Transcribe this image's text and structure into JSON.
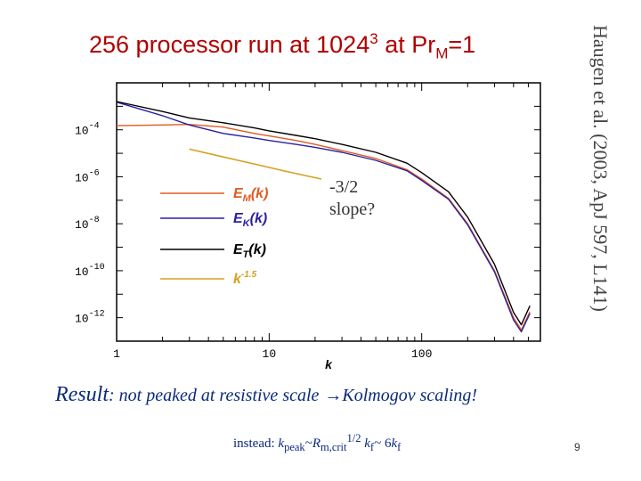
{
  "slide": {
    "title_main": "256 processor run at 1024",
    "title_sup": "3",
    "title_mid": " at Pr",
    "title_sub": "M",
    "title_end": "=1",
    "side_citation": "Haugen et al. (2003, ApJ 597, L141)",
    "result_label": "Result",
    "result_text": ": not peaked at resistive scale",
    "result_arrow": "→",
    "result_tail": "Kolmogov scaling!",
    "instead_label": "instead: ",
    "instead_k": "k",
    "instead_peak_sub": "peak",
    "instead_tilde": "~",
    "instead_R": "R",
    "instead_R_sub": "m,crit",
    "instead_R_sup": "1/2",
    "instead_space": " ",
    "instead_kf": "k",
    "instead_f_sub": "f",
    "instead_tail": "~ 6",
    "instead_kf2": "k",
    "instead_f2_sub": "f",
    "page_number": "9",
    "slope_note_line1": "-3/2",
    "slope_note_line2": "slope?"
  },
  "chart_data": {
    "type": "line",
    "xlabel": "k",
    "x_scale": "log",
    "y_scale": "log",
    "xlim": [
      1,
      600
    ],
    "ylim": [
      1e-13,
      0.01
    ],
    "x_ticks": [
      {
        "value": 1,
        "label": "1"
      },
      {
        "value": 10,
        "label": "10"
      },
      {
        "value": 100,
        "label": "100"
      }
    ],
    "y_ticks": [
      {
        "value": 0.0001,
        "base": "10",
        "exp": "-4"
      },
      {
        "value": 1e-06,
        "base": "10",
        "exp": "-6"
      },
      {
        "value": 1e-08,
        "base": "10",
        "exp": "-8"
      },
      {
        "value": 1e-10,
        "base": "10",
        "exp": "-10"
      },
      {
        "value": 1e-12,
        "base": "10",
        "exp": "-12"
      }
    ],
    "legend_position": "left-center",
    "series": [
      {
        "name": "E_M(k)",
        "legend_base": "E",
        "legend_sub": "M",
        "legend_arg": "(k)",
        "color": "#e05a20",
        "x": [
          1,
          2,
          3,
          5,
          8,
          10,
          15,
          20,
          30,
          50,
          80,
          100,
          150,
          200,
          300,
          400,
          450,
          512
        ],
        "y": [
          0.00015,
          0.00016,
          0.00017,
          0.00013,
          7e-05,
          5.5e-05,
          3.5e-05,
          2.4e-05,
          1.3e-05,
          6e-06,
          2e-06,
          8e-07,
          1.2e-07,
          1e-08,
          1e-10,
          1e-12,
          3e-13,
          1.8e-12
        ]
      },
      {
        "name": "E_K(k)",
        "legend_base": "E",
        "legend_sub": "K",
        "legend_arg": "(k)",
        "color": "#2a20a0",
        "x": [
          1,
          2,
          3,
          5,
          8,
          10,
          15,
          20,
          30,
          50,
          80,
          100,
          150,
          200,
          300,
          400,
          450,
          512
        ],
        "y": [
          0.0015,
          0.0004,
          0.00016,
          7e-05,
          4.5e-05,
          3.5e-05,
          2.4e-05,
          1.8e-05,
          1.1e-05,
          5e-06,
          1.8e-06,
          7e-07,
          1.1e-07,
          9e-09,
          9e-11,
          8e-13,
          2.5e-13,
          1.5e-12
        ]
      },
      {
        "name": "E_T(k)",
        "legend_base": "E",
        "legend_sub": "T",
        "legend_arg": "(k)",
        "color": "#000000",
        "x": [
          1,
          2,
          3,
          5,
          8,
          10,
          15,
          20,
          30,
          50,
          80,
          100,
          150,
          200,
          300,
          400,
          450,
          512
        ],
        "y": [
          0.0016,
          0.0006,
          0.00032,
          0.0002,
          0.00012,
          9e-05,
          5.8e-05,
          4.2e-05,
          2.4e-05,
          1.1e-05,
          3.8e-06,
          1.5e-06,
          2.3e-07,
          1.9e-08,
          1.9e-10,
          1.7e-12,
          5e-13,
          3.2e-12
        ]
      },
      {
        "name": "k^-1.5",
        "legend_base": "k",
        "legend_sup": "-1.5",
        "color": "#d4a020",
        "x": [
          3,
          5,
          8,
          12,
          17,
          22
        ],
        "y": [
          1.5e-05,
          7e-06,
          3.5e-06,
          1.9e-06,
          1.15e-06,
          8e-07
        ]
      }
    ]
  }
}
